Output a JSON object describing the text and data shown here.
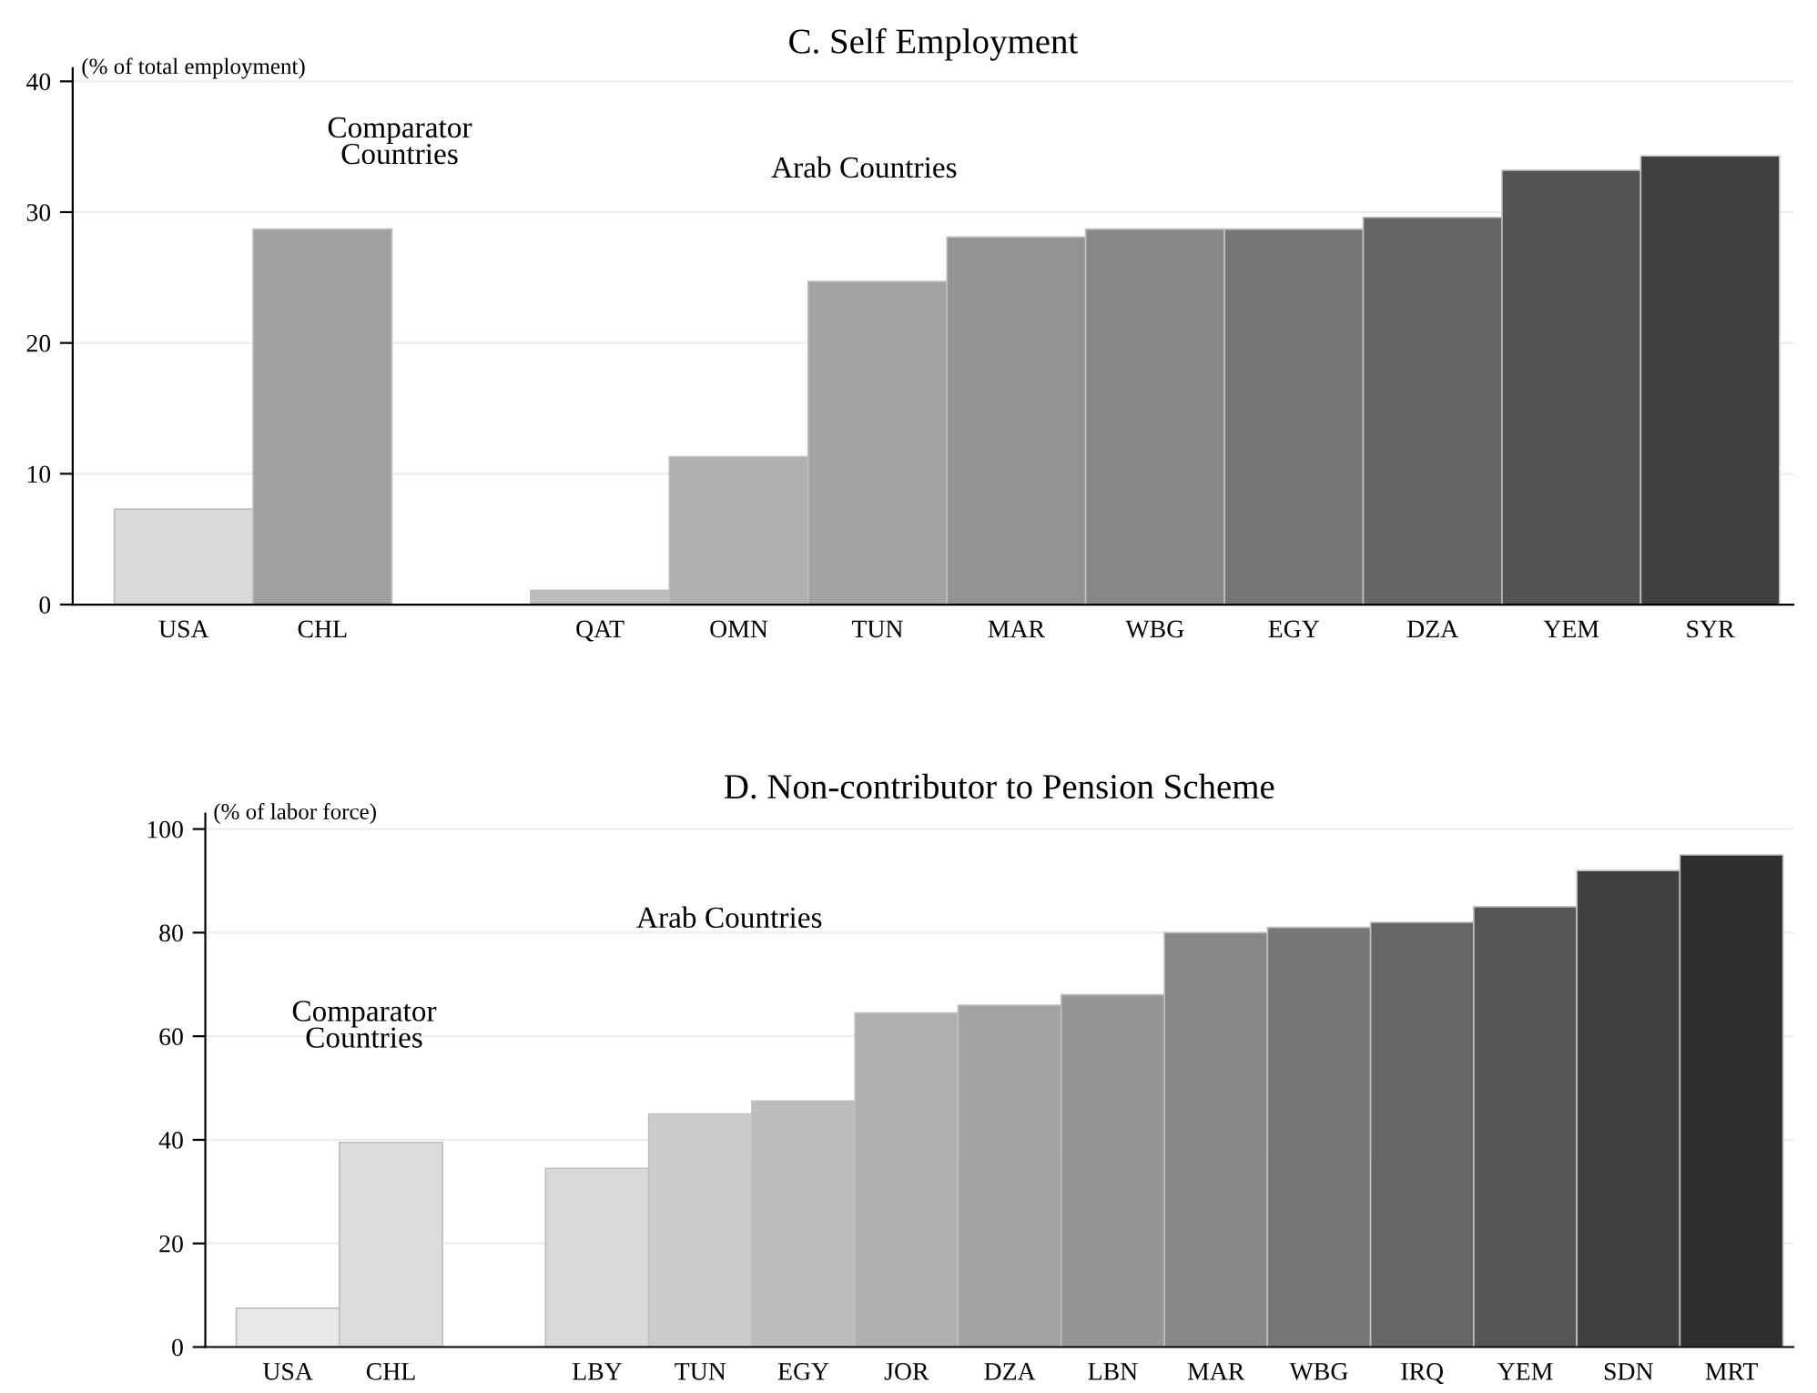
{
  "chart_data": [
    {
      "type": "bar",
      "title": "C. Self Employment",
      "ylabel": "(% of total employment)",
      "categories": [
        "USA",
        "CHL",
        null,
        "QAT",
        "OMN",
        "TUN",
        "MAR",
        "WBG",
        "EGY",
        "DZA",
        "YEM",
        "SYR"
      ],
      "values": [
        7.3,
        28.7,
        null,
        1.1,
        11.3,
        24.7,
        28.1,
        28.7,
        28.7,
        29.6,
        33.2,
        34.3
      ],
      "colors": [
        "#d9d9d9",
        "#a0a0a0",
        "#ffffff",
        "#bdbdbd",
        "#b0b0b0",
        "#a3a3a3",
        "#939393",
        "#878787",
        "#767676",
        "#646464",
        "#545454",
        "#3f3f3f"
      ],
      "ylim": [
        0,
        41
      ],
      "yticks": [
        0,
        10,
        20,
        30,
        40
      ],
      "grid": "y",
      "legend": false,
      "annotations": [
        "Comparator\nCountries",
        "Arab Countries"
      ]
    },
    {
      "type": "bar",
      "title": "D. Non-contributor to Pension Scheme",
      "ylabel": "(% of labor force)",
      "categories": [
        "USA",
        "CHL",
        null,
        "LBY",
        "TUN",
        "EGY",
        "JOR",
        "DZA",
        "LBN",
        "MAR",
        "WBG",
        "IRQ",
        "YEM",
        "SDN",
        "MRT"
      ],
      "values": [
        7.5,
        39.5,
        null,
        34.5,
        45,
        47.5,
        64.5,
        66,
        68,
        80,
        81,
        82,
        85,
        92,
        95
      ],
      "colors": [
        "#e8e8e8",
        "#dcdcdc",
        "#ffffff",
        "#d9d9d9",
        "#cccccc",
        "#bdbdbd",
        "#b0b0b0",
        "#a3a3a3",
        "#959595",
        "#878787",
        "#777777",
        "#666666",
        "#555555",
        "#404040",
        "#2e2e2e"
      ],
      "ylim": [
        0,
        103
      ],
      "yticks": [
        0,
        20,
        40,
        60,
        80,
        100
      ],
      "grid": "y",
      "legend": false,
      "annotations": [
        "Comparator\nCountries",
        "Arab Countries"
      ]
    }
  ]
}
